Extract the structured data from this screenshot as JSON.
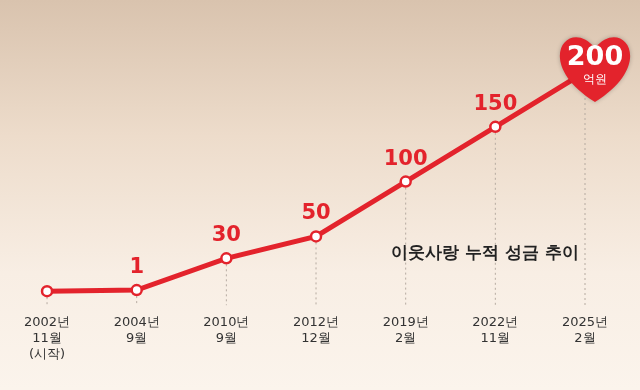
{
  "chart_data": {
    "type": "line",
    "title": "이웃사랑 누적 성금 추이",
    "categories": [
      [
        "2002년",
        "11월",
        "(시작)"
      ],
      [
        "2004년",
        "9월"
      ],
      [
        "2010년",
        "9월"
      ],
      [
        "2012년",
        "12월"
      ],
      [
        "2019년",
        "2월"
      ],
      [
        "2022년",
        "11월"
      ],
      [
        "2025년",
        "2월"
      ]
    ],
    "values": [
      0,
      1,
      30,
      50,
      100,
      150,
      200
    ],
    "value_labels": [
      null,
      "1",
      "30",
      "50",
      "100",
      "150",
      "200"
    ],
    "annotations": [
      {
        "text": "억원",
        "index": 6
      }
    ],
    "color": "#e3232c",
    "ylim": [
      0,
      200
    ],
    "yticks": [
      0,
      50,
      100,
      150,
      200
    ],
    "grid": false,
    "data_labels": true,
    "tick_labels": "x",
    "marker": "circle",
    "line_style": "solid"
  }
}
